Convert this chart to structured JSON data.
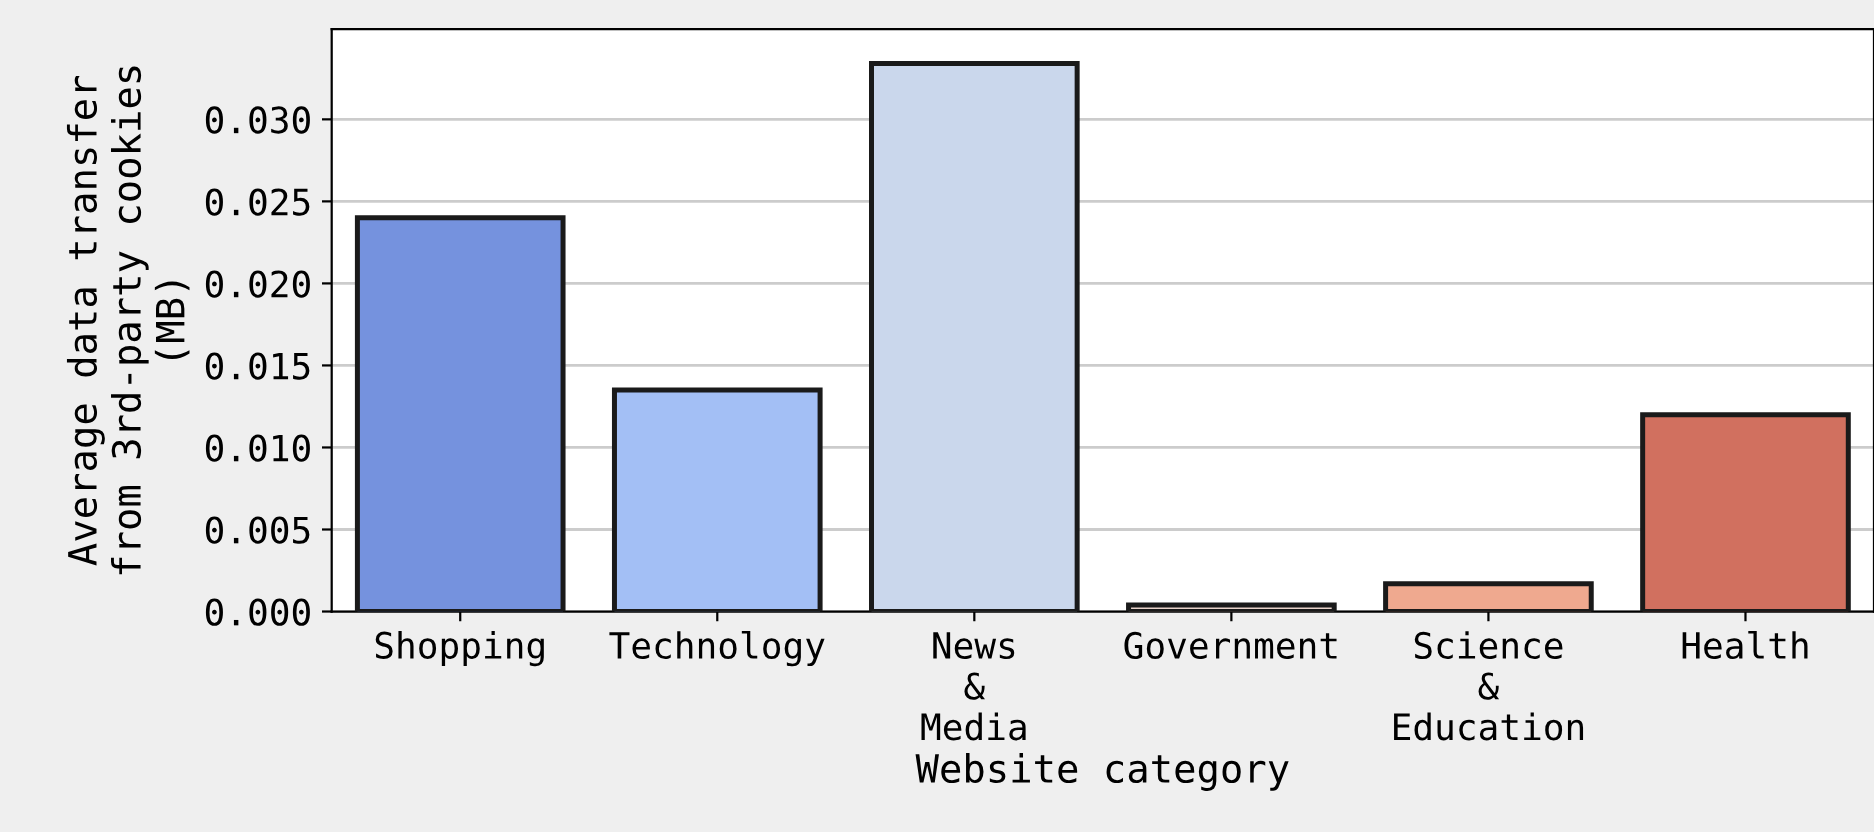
{
  "chart_data": {
    "type": "bar",
    "categories": [
      "Shopping",
      "Technology",
      "News\n&\nMedia",
      "Government",
      "Science\n&\nEducation",
      "Health"
    ],
    "values": [
      0.024,
      0.0135,
      0.0334,
      0.0004,
      0.0017,
      0.012
    ],
    "colors": [
      "#7592de",
      "#a3bff5",
      "#cad7ec",
      "#e8d2ca",
      "#efa98f",
      "#d1705f"
    ],
    "xlabel": "Website category",
    "ylabel": "Average data transfer\nfrom 3rd-party cookies\n(MB)",
    "ylim": [
      0,
      0.0355
    ],
    "yticks": [
      {
        "value": 0,
        "label": "0.000"
      },
      {
        "value": 0.005,
        "label": "0.005"
      },
      {
        "value": 0.01,
        "label": "0.010"
      },
      {
        "value": 0.015,
        "label": "0.015"
      },
      {
        "value": 0.02,
        "label": "0.020"
      },
      {
        "value": 0.025,
        "label": "0.025"
      },
      {
        "value": 0.03,
        "label": "0.030"
      }
    ],
    "grid": "y"
  }
}
